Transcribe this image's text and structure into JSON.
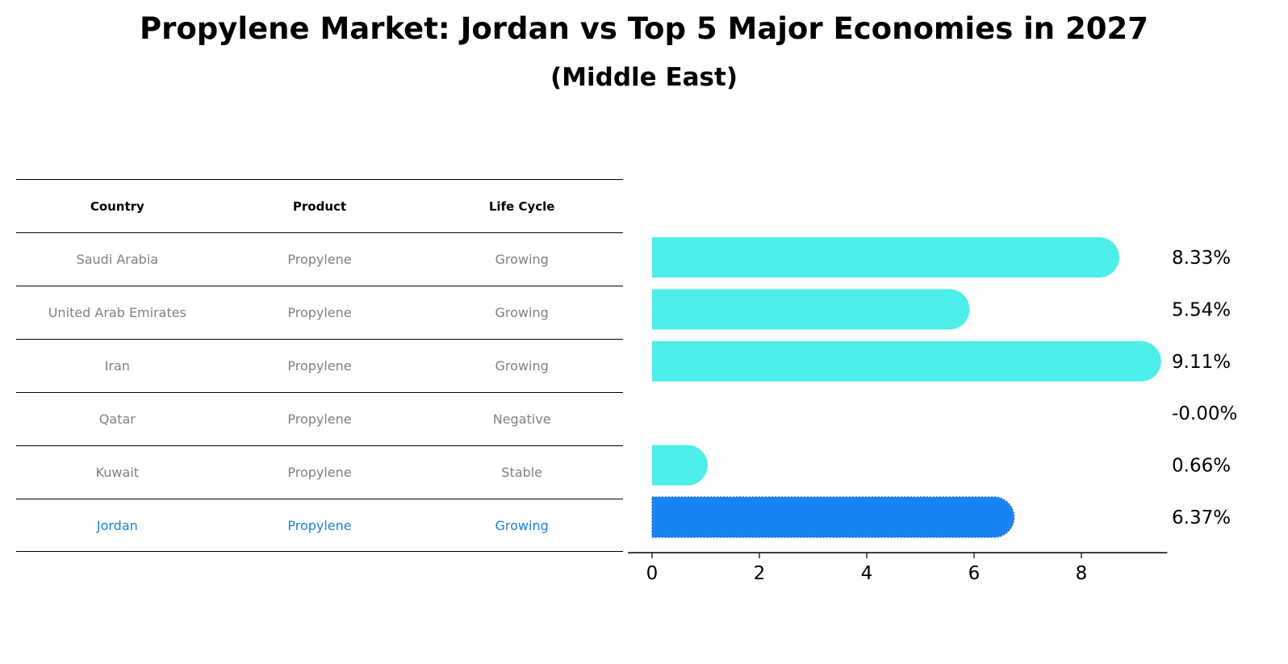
{
  "title": "Propylene Market: Jordan vs Top 5 Major Economies in 2027",
  "subtitle": "(Middle East)",
  "table": {
    "headers": [
      "Country",
      "Product",
      "Life Cycle"
    ],
    "rows": [
      [
        "Saudi Arabia",
        "Propylene",
        "Growing"
      ],
      [
        "United Arab Emirates",
        "Propylene",
        "Growing"
      ],
      [
        "Iran",
        "Propylene",
        "Growing"
      ],
      [
        "Qatar",
        "Propylene",
        "Negative"
      ],
      [
        "Kuwait",
        "Propylene",
        "Stable"
      ],
      [
        "Jordan",
        "Propylene",
        "Growing"
      ]
    ]
  },
  "colors": {
    "bar": "#4deee9",
    "highlight": "#1a83f3",
    "text_muted": "#808080",
    "text_highlight": "#1a83d6"
  },
  "chart_data": {
    "type": "bar",
    "orientation": "horizontal",
    "categories": [
      "Saudi Arabia",
      "United Arab Emirates",
      "Iran",
      "Qatar",
      "Kuwait",
      "Jordan"
    ],
    "values": [
      8.33,
      5.54,
      9.11,
      -0.0,
      0.66,
      6.37
    ],
    "value_labels": [
      "8.33%",
      "5.54%",
      "9.11%",
      "-0.00%",
      "0.66%",
      "6.37%"
    ],
    "highlight": "Jordan",
    "xticks": [
      0,
      2,
      4,
      6,
      8
    ],
    "xticklabels": [
      "0",
      "2",
      "4",
      "6",
      "8"
    ],
    "xlim": [
      -0.45,
      9.6
    ]
  }
}
